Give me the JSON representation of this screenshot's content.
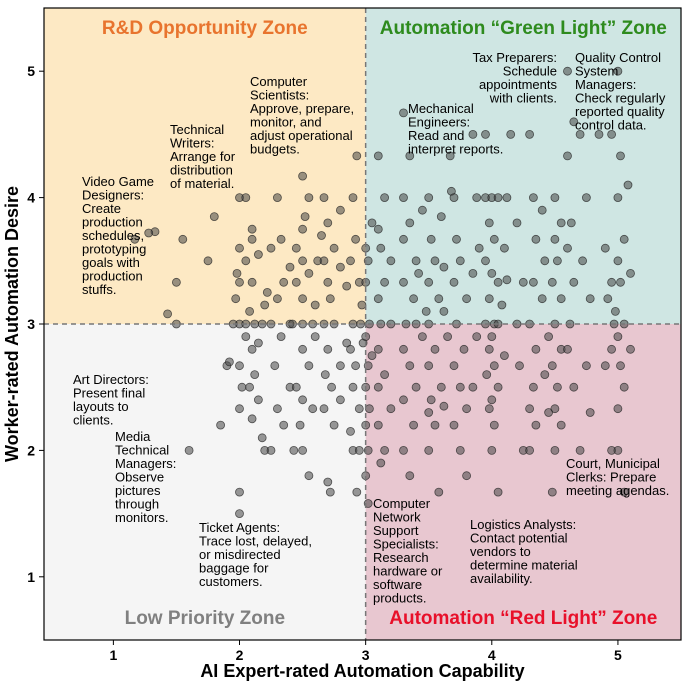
{
  "chart_data": {
    "type": "scatter",
    "xlabel": "AI Expert-rated Automation Capability",
    "ylabel": "Worker-rated Automation Desire",
    "xlim": [
      0.45,
      5.5
    ],
    "ylim": [
      0.5,
      5.5
    ],
    "x_ticks": [
      "1",
      "2",
      "3",
      "4",
      "5"
    ],
    "y_ticks": [
      "1",
      "2",
      "3",
      "4",
      "5"
    ],
    "divider": {
      "x": 3,
      "y": 3,
      "style": "dashed"
    },
    "zones": [
      {
        "name": "R&D Opportunity Zone",
        "quadrant": "top-left",
        "color": "#fde9c4",
        "title_color": "#e8742e"
      },
      {
        "name": "Automation “Green Light” Zone",
        "quadrant": "top-right",
        "color": "#cfe6e3",
        "title_color": "#2e8b1e"
      },
      {
        "name": "Low Priority Zone",
        "quadrant": "bottom-left",
        "color": "#f5f5f5",
        "title_color": "#808080"
      },
      {
        "name": "Automation “Red Light” Zone",
        "quadrant": "bottom-right",
        "color": "#e8c7d0",
        "title_color": "#e8102a"
      }
    ],
    "annotations": [
      {
        "lines": [
          "R&D Opportunity Zone"
        ]
      },
      {
        "lines": [
          "Computer",
          "Scientists:",
          "Approve, prepare,",
          "monitor, and",
          "adjust operational",
          "budgets."
        ],
        "x": 2.86,
        "y": 4.33
      },
      {
        "lines": [
          "Technical",
          "Writers:",
          "Arrange for",
          "distribution",
          "of material."
        ],
        "x": 2.0,
        "y": 4.0
      },
      {
        "lines": [
          "Video Game",
          "Designers:",
          "Create",
          "production",
          "schedules,",
          "prototyping",
          "goals with",
          "production",
          "stuffs."
        ],
        "x": 1.4,
        "y": 3.67
      },
      {
        "lines": [
          "Tax Preparers:",
          "Schedule",
          "appointments",
          "with clients."
        ],
        "x": 4.6,
        "y": 5.0
      },
      {
        "lines": [
          "Quality Control",
          "System",
          "Managers:",
          "Check regularly",
          "reported quality",
          "control data."
        ],
        "x": 4.75,
        "y": 5.0
      },
      {
        "lines": [
          "Mechanical",
          "Engineers:",
          "Read and",
          "interpret reports."
        ],
        "x": 3.3,
        "y": 4.67
      },
      {
        "lines": [
          "Art Directors:",
          "Present final",
          "layouts to",
          "clients."
        ],
        "x": 1.4,
        "y": 2.45
      },
      {
        "lines": [
          "Media",
          "Technical",
          "Managers:",
          "Observe",
          "pictures",
          "through",
          "monitors."
        ],
        "x": 1.58,
        "y": 2.0
      },
      {
        "lines": [
          "Ticket Agents:",
          "Trace lost, delayed,",
          "or misdirected",
          "baggage for",
          "customers."
        ],
        "x": 2.0,
        "y": 1.5
      },
      {
        "lines": [
          "Computer",
          "Network",
          "Support",
          "Specialists:",
          "Research",
          "hardware or",
          "software",
          "products."
        ],
        "x": 3.0,
        "y": 1.6
      },
      {
        "lines": [
          "Logistics Analysts:",
          "Contact potential",
          "vendors to",
          "determine material",
          "availability."
        ],
        "x": 3.85,
        "y": 1.67
      },
      {
        "lines": [
          "Court, Municipal",
          "Clerks: Prepare",
          "meeting agendas."
        ],
        "x": 4.48,
        "y": 1.67
      }
    ],
    "points": [
      [
        1.17,
        3.67
      ],
      [
        1.33,
        3.73
      ],
      [
        1.28,
        3.72
      ],
      [
        1.5,
        3.33
      ],
      [
        1.55,
        3.67
      ],
      [
        1.43,
        3.08
      ],
      [
        1.5,
        3.0
      ],
      [
        1.85,
        2.2
      ],
      [
        1.6,
        2.0
      ],
      [
        1.8,
        3.85
      ],
      [
        1.75,
        3.5
      ],
      [
        1.9,
        2.67
      ],
      [
        2.0,
        4.0
      ],
      [
        2.05,
        4.0
      ],
      [
        2.1,
        3.75
      ],
      [
        2.0,
        3.6
      ],
      [
        2.0,
        3.33
      ],
      [
        2.1,
        3.33
      ],
      [
        1.97,
        3.2
      ],
      [
        2.08,
        3.1
      ],
      [
        2.0,
        3.0
      ],
      [
        2.05,
        3.0
      ],
      [
        2.12,
        3.0
      ],
      [
        2.18,
        3.0
      ],
      [
        1.95,
        3.0
      ],
      [
        2.05,
        2.9
      ],
      [
        2.1,
        2.8
      ],
      [
        2.0,
        2.67
      ],
      [
        2.12,
        2.6
      ],
      [
        2.02,
        2.5
      ],
      [
        2.08,
        2.5
      ],
      [
        2.15,
        2.4
      ],
      [
        2.0,
        2.33
      ],
      [
        2.1,
        2.25
      ],
      [
        1.92,
        2.7
      ],
      [
        2.18,
        2.1
      ],
      [
        2.0,
        1.67
      ],
      [
        2.0,
        1.5
      ],
      [
        2.05,
        3.5
      ],
      [
        2.15,
        3.55
      ],
      [
        2.1,
        3.67
      ],
      [
        1.98,
        3.4
      ],
      [
        2.2,
        3.15
      ],
      [
        2.22,
        3.25
      ],
      [
        2.2,
        2.0
      ],
      [
        2.15,
        2.85
      ],
      [
        2.3,
        4.0
      ],
      [
        2.33,
        3.67
      ],
      [
        2.25,
        3.6
      ],
      [
        2.35,
        3.33
      ],
      [
        2.3,
        3.2
      ],
      [
        2.4,
        3.0
      ],
      [
        2.25,
        3.0
      ],
      [
        2.33,
        2.9
      ],
      [
        2.28,
        2.67
      ],
      [
        2.4,
        2.5
      ],
      [
        2.3,
        2.33
      ],
      [
        2.35,
        2.2
      ],
      [
        2.25,
        2.0
      ],
      [
        2.5,
        4.17
      ],
      [
        2.55,
        4.0
      ],
      [
        2.5,
        3.75
      ],
      [
        2.45,
        3.6
      ],
      [
        2.5,
        3.5
      ],
      [
        2.55,
        3.4
      ],
      [
        2.45,
        3.33
      ],
      [
        2.5,
        3.2
      ],
      [
        2.58,
        3.0
      ],
      [
        2.5,
        3.0
      ],
      [
        2.42,
        3.0
      ],
      [
        2.5,
        2.8
      ],
      [
        2.55,
        2.67
      ],
      [
        2.45,
        2.5
      ],
      [
        2.5,
        2.4
      ],
      [
        2.58,
        2.33
      ],
      [
        2.48,
        2.2
      ],
      [
        2.5,
        2.0
      ],
      [
        2.43,
        2.0
      ],
      [
        2.55,
        1.8
      ],
      [
        2.6,
        3.15
      ],
      [
        2.62,
        3.5
      ],
      [
        2.52,
        3.85
      ],
      [
        2.4,
        3.45
      ],
      [
        2.6,
        2.9
      ],
      [
        2.67,
        4.0
      ],
      [
        2.7,
        3.8
      ],
      [
        2.75,
        3.6
      ],
      [
        2.67,
        3.5
      ],
      [
        2.7,
        3.33
      ],
      [
        2.72,
        3.2
      ],
      [
        2.67,
        3.0
      ],
      [
        2.75,
        3.0
      ],
      [
        2.7,
        2.8
      ],
      [
        2.8,
        2.67
      ],
      [
        2.68,
        2.6
      ],
      [
        2.73,
        2.5
      ],
      [
        2.8,
        2.4
      ],
      [
        2.67,
        2.33
      ],
      [
        2.75,
        2.2
      ],
      [
        2.7,
        1.75
      ],
      [
        2.72,
        1.67
      ],
      [
        2.8,
        3.45
      ],
      [
        2.8,
        3.9
      ],
      [
        2.85,
        3.3
      ],
      [
        2.85,
        2.85
      ],
      [
        2.65,
        3.7
      ],
      [
        2.9,
        4.0
      ],
      [
        2.92,
        3.67
      ],
      [
        2.88,
        3.5
      ],
      [
        2.95,
        3.33
      ],
      [
        2.9,
        3.0
      ],
      [
        2.96,
        3.0
      ],
      [
        2.92,
        2.67
      ],
      [
        2.9,
        2.5
      ],
      [
        2.95,
        2.33
      ],
      [
        2.9,
        2.0
      ],
      [
        2.95,
        2.0
      ],
      [
        2.93,
        1.67
      ],
      [
        2.93,
        4.33
      ],
      [
        2.88,
        2.8
      ],
      [
        2.97,
        3.15
      ],
      [
        2.98,
        2.85
      ],
      [
        2.88,
        2.15
      ],
      [
        3.0,
        3.6
      ],
      [
        3.02,
        3.5
      ],
      [
        3.0,
        3.33
      ],
      [
        3.03,
        3.0
      ],
      [
        3.0,
        2.9
      ],
      [
        3.02,
        2.67
      ],
      [
        3.0,
        2.5
      ],
      [
        3.03,
        2.33
      ],
      [
        3.0,
        2.2
      ],
      [
        3.02,
        2.0
      ],
      [
        3.0,
        1.8
      ],
      [
        3.05,
        3.8
      ],
      [
        3.05,
        2.75
      ],
      [
        3.02,
        1.58
      ],
      [
        3.1,
        4.33
      ],
      [
        3.15,
        4.0
      ],
      [
        3.1,
        3.75
      ],
      [
        3.12,
        3.6
      ],
      [
        3.2,
        3.5
      ],
      [
        3.15,
        3.33
      ],
      [
        3.1,
        3.2
      ],
      [
        3.12,
        3.0
      ],
      [
        3.2,
        3.0
      ],
      [
        3.1,
        2.8
      ],
      [
        3.15,
        2.6
      ],
      [
        3.1,
        2.5
      ],
      [
        3.2,
        2.33
      ],
      [
        3.1,
        2.2
      ],
      [
        3.15,
        2.0
      ],
      [
        3.12,
        1.9
      ],
      [
        3.3,
        4.67
      ],
      [
        3.35,
        4.33
      ],
      [
        3.3,
        4.0
      ],
      [
        3.35,
        3.8
      ],
      [
        3.3,
        3.67
      ],
      [
        3.4,
        3.5
      ],
      [
        3.3,
        3.33
      ],
      [
        3.38,
        3.2
      ],
      [
        3.32,
        3.0
      ],
      [
        3.4,
        3.0
      ],
      [
        3.3,
        2.8
      ],
      [
        3.35,
        2.67
      ],
      [
        3.4,
        2.5
      ],
      [
        3.3,
        2.4
      ],
      [
        3.38,
        2.2
      ],
      [
        3.3,
        2.0
      ],
      [
        3.35,
        1.8
      ],
      [
        3.45,
        3.9
      ],
      [
        3.42,
        3.4
      ],
      [
        3.48,
        3.1
      ],
      [
        3.45,
        2.9
      ],
      [
        3.5,
        2.3
      ],
      [
        3.5,
        4.0
      ],
      [
        3.52,
        3.67
      ],
      [
        3.55,
        3.5
      ],
      [
        3.5,
        3.33
      ],
      [
        3.58,
        3.2
      ],
      [
        3.5,
        3.0
      ],
      [
        3.55,
        2.8
      ],
      [
        3.5,
        2.67
      ],
      [
        3.6,
        2.5
      ],
      [
        3.52,
        2.4
      ],
      [
        3.55,
        2.2
      ],
      [
        3.5,
        2.0
      ],
      [
        3.58,
        1.67
      ],
      [
        3.6,
        3.85
      ],
      [
        3.62,
        3.45
      ],
      [
        3.62,
        3.1
      ],
      [
        3.65,
        2.9
      ],
      [
        3.62,
        2.35
      ],
      [
        3.68,
        4.05
      ],
      [
        3.67,
        4.33
      ],
      [
        3.7,
        4.0
      ],
      [
        3.72,
        3.67
      ],
      [
        3.75,
        3.5
      ],
      [
        3.7,
        3.33
      ],
      [
        3.8,
        3.2
      ],
      [
        3.72,
        3.0
      ],
      [
        3.78,
        2.8
      ],
      [
        3.7,
        2.67
      ],
      [
        3.75,
        2.5
      ],
      [
        3.8,
        2.33
      ],
      [
        3.7,
        2.2
      ],
      [
        3.75,
        2.0
      ],
      [
        3.8,
        1.8
      ],
      [
        3.85,
        4.5
      ],
      [
        3.88,
        4.0
      ],
      [
        3.9,
        3.6
      ],
      [
        3.85,
        3.4
      ],
      [
        3.88,
        2.9
      ],
      [
        3.85,
        2.5
      ],
      [
        3.95,
        4.0
      ],
      [
        4.0,
        4.0
      ],
      [
        4.05,
        4.0
      ],
      [
        3.98,
        3.8
      ],
      [
        4.02,
        3.67
      ],
      [
        3.95,
        3.5
      ],
      [
        4.0,
        3.4
      ],
      [
        4.05,
        3.33
      ],
      [
        3.98,
        3.2
      ],
      [
        4.02,
        3.0
      ],
      [
        3.95,
        3.0
      ],
      [
        4.05,
        3.0
      ],
      [
        4.0,
        2.9
      ],
      [
        3.98,
        2.8
      ],
      [
        4.02,
        2.67
      ],
      [
        3.96,
        2.6
      ],
      [
        4.05,
        2.5
      ],
      [
        4.0,
        2.4
      ],
      [
        3.98,
        2.33
      ],
      [
        4.02,
        2.2
      ],
      [
        4.0,
        2.0
      ],
      [
        4.05,
        1.67
      ],
      [
        3.95,
        4.5
      ],
      [
        4.1,
        3.6
      ],
      [
        4.08,
        3.15
      ],
      [
        4.1,
        2.75
      ],
      [
        4.12,
        4.0
      ],
      [
        4.12,
        3.35
      ],
      [
        4.15,
        4.5
      ],
      [
        4.2,
        3.8
      ],
      [
        4.25,
        3.33
      ],
      [
        4.2,
        3.0
      ],
      [
        4.22,
        2.67
      ],
      [
        4.25,
        2.0
      ],
      [
        4.3,
        4.5
      ],
      [
        4.33,
        4.0
      ],
      [
        4.35,
        3.67
      ],
      [
        4.33,
        3.33
      ],
      [
        4.3,
        3.0
      ],
      [
        4.35,
        2.8
      ],
      [
        4.33,
        2.5
      ],
      [
        4.3,
        2.33
      ],
      [
        4.35,
        2.2
      ],
      [
        4.3,
        2.0
      ],
      [
        4.4,
        3.9
      ],
      [
        4.42,
        3.5
      ],
      [
        4.4,
        3.2
      ],
      [
        4.45,
        2.9
      ],
      [
        4.42,
        2.6
      ],
      [
        4.45,
        2.3
      ],
      [
        4.5,
        4.0
      ],
      [
        4.55,
        3.8
      ],
      [
        4.5,
        3.67
      ],
      [
        4.52,
        3.5
      ],
      [
        4.48,
        3.33
      ],
      [
        4.55,
        3.2
      ],
      [
        4.5,
        3.0
      ],
      [
        4.55,
        2.8
      ],
      [
        4.48,
        2.67
      ],
      [
        4.52,
        2.5
      ],
      [
        4.5,
        2.33
      ],
      [
        4.55,
        2.2
      ],
      [
        4.5,
        2.0
      ],
      [
        4.48,
        1.67
      ],
      [
        4.6,
        5.0
      ],
      [
        4.65,
        4.6
      ],
      [
        4.6,
        4.33
      ],
      [
        4.63,
        3.8
      ],
      [
        4.6,
        3.6
      ],
      [
        4.65,
        3.33
      ],
      [
        4.62,
        3.0
      ],
      [
        4.6,
        2.8
      ],
      [
        4.65,
        2.5
      ],
      [
        4.7,
        2.0
      ],
      [
        4.7,
        4.5
      ],
      [
        4.75,
        4.0
      ],
      [
        4.72,
        3.5
      ],
      [
        4.78,
        3.2
      ],
      [
        4.75,
        2.67
      ],
      [
        4.78,
        2.3
      ],
      [
        4.85,
        4.5
      ],
      [
        4.95,
        4.5
      ],
      [
        4.9,
        3.6
      ],
      [
        4.95,
        3.33
      ],
      [
        4.92,
        3.2
      ],
      [
        4.97,
        3.0
      ],
      [
        4.95,
        2.8
      ],
      [
        4.9,
        2.67
      ],
      [
        4.95,
        2.0
      ],
      [
        5.0,
        5.0
      ],
      [
        5.02,
        4.33
      ],
      [
        5.0,
        4.0
      ],
      [
        5.05,
        3.67
      ],
      [
        5.0,
        3.5
      ],
      [
        5.02,
        3.33
      ],
      [
        4.98,
        3.1
      ],
      [
        5.05,
        3.0
      ],
      [
        5.0,
        2.9
      ],
      [
        5.02,
        2.67
      ],
      [
        5.05,
        2.5
      ],
      [
        5.0,
        2.33
      ],
      [
        5.0,
        2.0
      ],
      [
        5.05,
        1.67
      ],
      [
        5.08,
        4.1
      ],
      [
        5.1,
        3.4
      ],
      [
        5.1,
        2.8
      ]
    ]
  }
}
